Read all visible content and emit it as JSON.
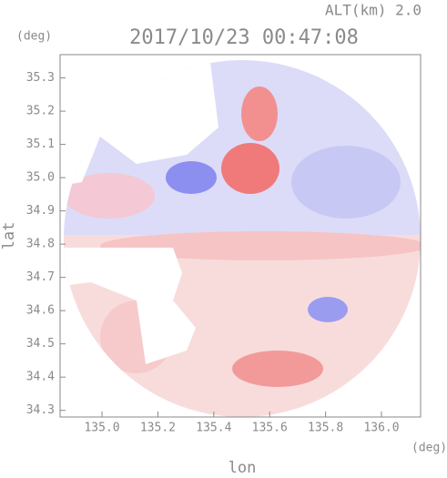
{
  "chart_data": {
    "type": "radar-map",
    "title": "2017/10/23 00:47:08",
    "subtitle": "ALT(km) 2.0",
    "x_label": "lon",
    "x_unit": "(deg)",
    "y_label": "lat",
    "y_unit": "(deg)",
    "xlim": [
      134.85,
      136.14
    ],
    "xticks": [
      {
        "value": 135,
        "label": "135.0"
      },
      135.2,
      135.4,
      135.6,
      135.8,
      {
        "value": 136,
        "label": "136.0"
      }
    ],
    "ylim": [
      34.28,
      35.37
    ],
    "yticks": [
      34.3,
      34.4,
      34.5,
      34.6,
      34.7,
      34.8,
      34.9,
      {
        "value": 35,
        "label": "35.0"
      },
      35.1,
      35.2,
      35.3
    ]
  }
}
